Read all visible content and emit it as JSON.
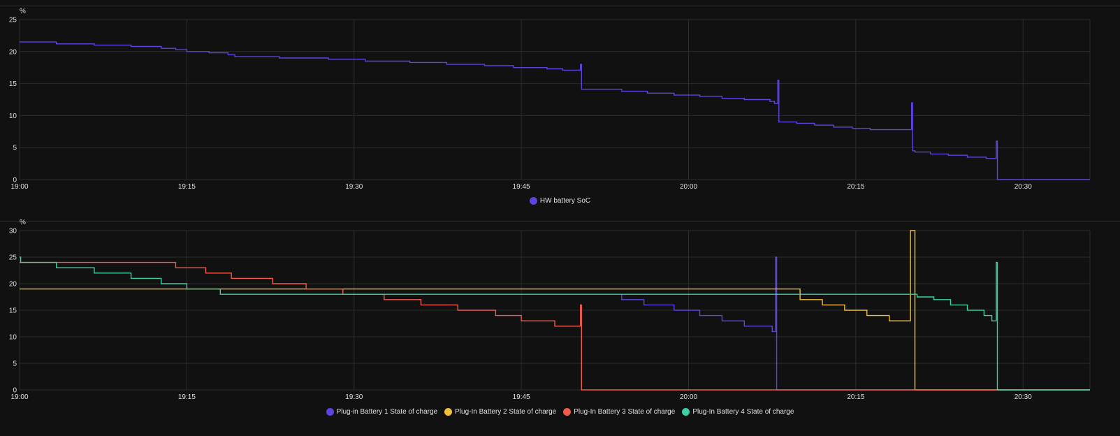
{
  "colors": {
    "hw": "#5b45e0",
    "plugin1": "#5b45e0",
    "plugin2": "#f2c037",
    "plugin3": "#f25a4b",
    "plugin4": "#3ecfa4",
    "grid": "#2c2c2c",
    "text": "#e1e1e1"
  },
  "chart_data": [
    {
      "type": "line",
      "step": true,
      "unit": "%",
      "xlim": [
        "19:00",
        "20:36"
      ],
      "ylim": [
        0,
        25
      ],
      "yticks": [
        0,
        5,
        10,
        15,
        20,
        25
      ],
      "xticks": [
        "19:00",
        "19:15",
        "19:30",
        "19:45",
        "20:00",
        "20:15",
        "20:30"
      ],
      "grid": true,
      "legend_position": "bottom-center",
      "series": [
        {
          "name": "HW battery SoC",
          "color": "#5b45e0",
          "points": [
            [
              "19:00",
              21.5
            ],
            [
              "19:03.3",
              21.2
            ],
            [
              "19:06.7",
              21.0
            ],
            [
              "19:10",
              20.8
            ],
            [
              "19:12.7",
              20.5
            ],
            [
              "19:14",
              20.3
            ],
            [
              "19:15",
              20.0
            ],
            [
              "19:17",
              19.8
            ],
            [
              "19:18.7",
              19.5
            ],
            [
              "19:19.3",
              19.2
            ],
            [
              "19:23.3",
              19.0
            ],
            [
              "19:27.7",
              18.8
            ],
            [
              "19:31",
              18.5
            ],
            [
              "19:35",
              18.3
            ],
            [
              "19:38.3",
              18.0
            ],
            [
              "19:41.7",
              17.8
            ],
            [
              "19:44.3",
              17.5
            ],
            [
              "19:47.3",
              17.3
            ],
            [
              "19:48.7",
              17.1
            ],
            [
              "19:50.3",
              18.0
            ],
            [
              "19:50.4",
              14.1
            ],
            [
              "19:54",
              13.8
            ],
            [
              "19:56.3",
              13.5
            ],
            [
              "19:58.7",
              13.2
            ],
            [
              "20:01",
              13.0
            ],
            [
              "20:03",
              12.7
            ],
            [
              "20:05",
              12.5
            ],
            [
              "20:07.3",
              12.2
            ],
            [
              "20:07.7",
              11.9
            ],
            [
              "20:08",
              15.5
            ],
            [
              "20:08.1",
              9.0
            ],
            [
              "20:09.7",
              8.8
            ],
            [
              "20:11.3",
              8.5
            ],
            [
              "20:13",
              8.2
            ],
            [
              "20:14.7",
              8.0
            ],
            [
              "20:16.3",
              7.8
            ],
            [
              "20:18",
              7.8
            ],
            [
              "20:19.7",
              7.8
            ],
            [
              "20:20",
              12.0
            ],
            [
              "20:20.1",
              4.5
            ],
            [
              "20:20.3",
              4.3
            ],
            [
              "20:21.7",
              4.0
            ],
            [
              "20:23.3",
              3.8
            ],
            [
              "20:25",
              3.5
            ],
            [
              "20:26.7",
              3.3
            ],
            [
              "20:27.6",
              6.0
            ],
            [
              "20:27.7",
              0.0
            ],
            [
              "20:36",
              0.0
            ]
          ]
        }
      ]
    },
    {
      "type": "line",
      "step": true,
      "unit": "%",
      "xlim": [
        "19:00",
        "20:36"
      ],
      "ylim": [
        0,
        30
      ],
      "yticks": [
        0,
        5,
        10,
        15,
        20,
        25,
        30
      ],
      "xticks": [
        "19:00",
        "19:15",
        "19:30",
        "19:45",
        "20:00",
        "20:15",
        "20:30"
      ],
      "grid": true,
      "legend_position": "bottom-center",
      "series": [
        {
          "name": "Plug-in Battery 1 State of charge",
          "color": "#5b45e0",
          "points": [
            [
              "19:54",
              18
            ],
            [
              "19:54",
              17
            ],
            [
              "19:56",
              16
            ],
            [
              "19:58.7",
              15
            ],
            [
              "20:01",
              14
            ],
            [
              "20:03",
              13
            ],
            [
              "20:05",
              12
            ],
            [
              "20:07.5",
              11
            ],
            [
              "20:07.8",
              25
            ],
            [
              "20:07.9",
              0
            ],
            [
              "20:36",
              0
            ]
          ]
        },
        {
          "name": "Plug-In Battery 2 State of charge",
          "color": "#f2c037",
          "points": [
            [
              "19:00",
              19
            ],
            [
              "20:08",
              19
            ],
            [
              "20:10",
              17
            ],
            [
              "20:12",
              16
            ],
            [
              "20:14",
              15
            ],
            [
              "20:16",
              14
            ],
            [
              "20:18",
              13
            ],
            [
              "20:19.5",
              13
            ],
            [
              "20:19.9",
              30
            ],
            [
              "20:20.2",
              30
            ],
            [
              "20:20.3",
              0
            ],
            [
              "20:36",
              0
            ]
          ]
        },
        {
          "name": "Plug-In Battery 3 State of charge",
          "color": "#f25a4b",
          "points": [
            [
              "19:00",
              24
            ],
            [
              "19:14",
              23
            ],
            [
              "19:16.7",
              22
            ],
            [
              "19:19",
              21
            ],
            [
              "19:22.7",
              20
            ],
            [
              "19:25.7",
              19
            ],
            [
              "19:29",
              18
            ],
            [
              "19:32.7",
              17
            ],
            [
              "19:36",
              16
            ],
            [
              "19:39.3",
              15
            ],
            [
              "19:42.7",
              14
            ],
            [
              "19:45",
              13
            ],
            [
              "19:48",
              12
            ],
            [
              "19:50.3",
              16
            ],
            [
              "19:50.4",
              0
            ],
            [
              "20:36",
              0
            ]
          ]
        },
        {
          "name": "Plug-In Battery 4 State of charge",
          "color": "#3ecfa4",
          "points": [
            [
              "19:00",
              25
            ],
            [
              "19:00.1",
              24
            ],
            [
              "19:03.3",
              23
            ],
            [
              "19:06.7",
              22
            ],
            [
              "19:10",
              21
            ],
            [
              "19:12.7",
              20
            ],
            [
              "19:15",
              19
            ],
            [
              "19:18",
              18
            ],
            [
              "20:20",
              18
            ],
            [
              "20:20.5",
              17.5
            ],
            [
              "20:22",
              17
            ],
            [
              "20:23.5",
              16
            ],
            [
              "20:25",
              15
            ],
            [
              "20:26.5",
              14
            ],
            [
              "20:27.2",
              13
            ],
            [
              "20:27.6",
              24
            ],
            [
              "20:27.7",
              0
            ],
            [
              "20:36",
              0
            ]
          ]
        }
      ]
    }
  ]
}
